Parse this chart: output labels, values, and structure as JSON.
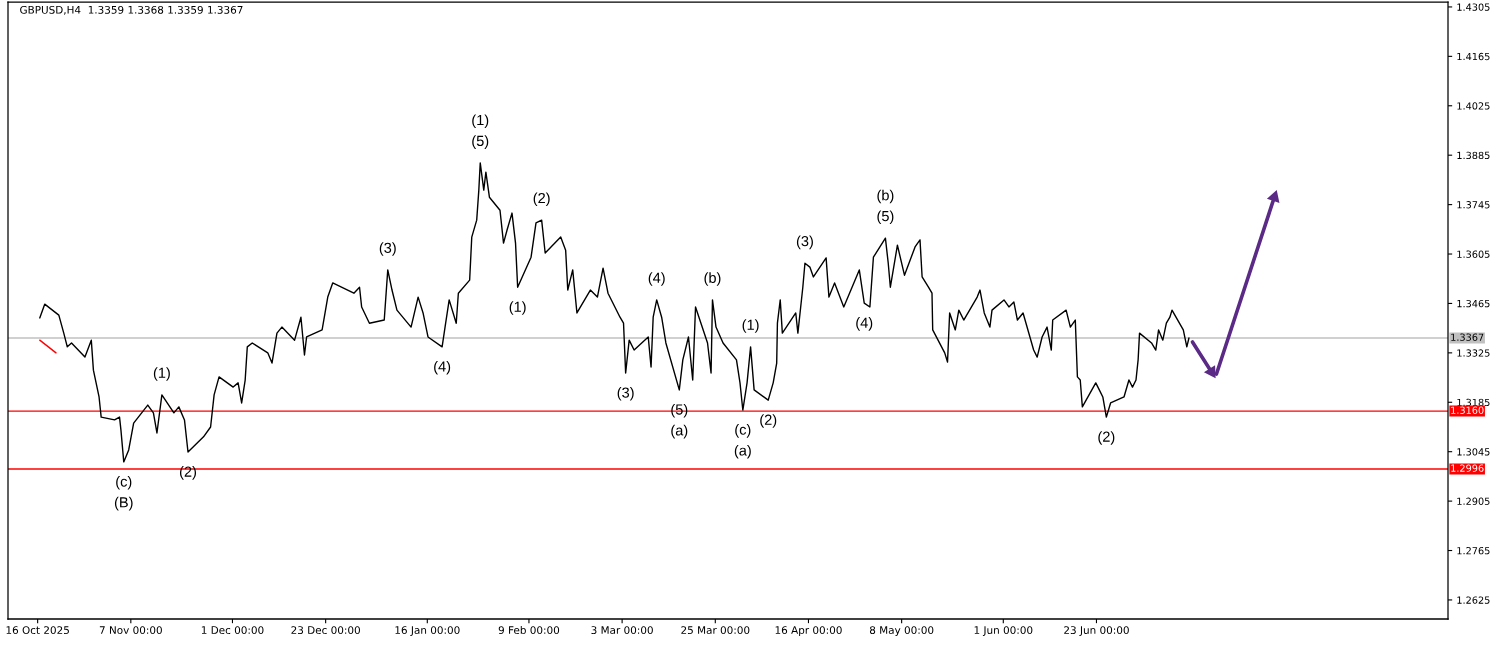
{
  "chart_data": {
    "type": "line",
    "title": "GBPUSD,H4  1.3359 1.3368 1.3359 1.3367",
    "xlim": [
      "2025-10-09",
      "2026-09-14"
    ],
    "ylim": [
      1.2571,
      1.4319
    ],
    "xticks": [
      {
        "value": "2025-10-16",
        "label": "16 Oct 2025"
      },
      {
        "value": "2025-11-07",
        "label": "7 Nov 00:00"
      },
      {
        "value": "2025-12-01",
        "label": "1 Dec 00:00"
      },
      {
        "value": "2025-12-23",
        "label": "23 Dec 00:00"
      },
      {
        "value": "2026-01-16",
        "label": "16 Jan 00:00"
      },
      {
        "value": "2026-02-09",
        "label": "9 Feb 00:00"
      },
      {
        "value": "2026-03-03",
        "label": "3 Mar 00:00"
      },
      {
        "value": "2026-03-25",
        "label": "25 Mar 00:00"
      },
      {
        "value": "2026-04-16",
        "label": "16 Apr 00:00"
      },
      {
        "value": "2026-05-08",
        "label": "8 May 00:00"
      },
      {
        "value": "2026-06-01",
        "label": "1 Jun 00:00"
      },
      {
        "value": "2026-06-23",
        "label": "23 Jun 00:00"
      }
    ],
    "yticks": [
      1.4305,
      1.4165,
      1.4025,
      1.3885,
      1.3745,
      1.3605,
      1.3465,
      1.3325,
      1.3185,
      1.3045,
      1.2905,
      1.2765,
      1.2625
    ],
    "series": [
      {
        "color": "#000000",
        "x": [
          "2025-10-16T12:00",
          "2025-10-17T16:00",
          "2025-10-21T00:00",
          "2025-10-22T04:00",
          "2025-10-23T00:00",
          "2025-10-24T00:00",
          "2025-10-27T04:00",
          "2025-10-28T16:00",
          "2025-10-29T04:00",
          "2025-10-30T12:00",
          "2025-10-31T00:00",
          "2025-11-03T04:00",
          "2025-11-04T08:00",
          "2025-11-04T16:00",
          "2025-11-05T08:00",
          "2025-11-06T12:00",
          "2025-11-07T16:00",
          "2025-11-11T00:00",
          "2025-11-12T08:00",
          "2025-11-13T04:00",
          "2025-11-14T08:00",
          "2025-11-17T04:00",
          "2025-11-18T08:00",
          "2025-11-19T16:00",
          "2025-11-20T12:00",
          "2025-11-24T04:00",
          "2025-11-25T20:00",
          "2025-11-26T16:00",
          "2025-11-27T20:00",
          "2025-12-01T04:00",
          "2025-12-02T08:00",
          "2025-12-03T04:00",
          "2025-12-04T00:00",
          "2025-12-04T12:00",
          "2025-12-05T16:00",
          "2025-12-09T08:00",
          "2025-12-10T08:00",
          "2025-12-11T12:00",
          "2025-12-12T16:00",
          "2025-12-15T16:00",
          "2025-12-17T04:00",
          "2025-12-18T00:00",
          "2025-12-18T12:00",
          "2025-12-22T04:00",
          "2025-12-23T12:00",
          "2025-12-24T16:00",
          "2025-12-29T16:00",
          "2025-12-31T00:00",
          "2025-12-31T12:00",
          "2026-01-02T08:00",
          "2026-01-05T20:00",
          "2026-01-06T16:00",
          "2026-01-07T16:00",
          "2026-01-08T20:00",
          "2026-01-12T04:00",
          "2026-01-13T20:00",
          "2026-01-15T00:00",
          "2026-01-16T04:00",
          "2026-01-19T12:00",
          "2026-01-20T08:00",
          "2026-01-21T04:00",
          "2026-01-22T20:00",
          "2026-01-23T08:00",
          "2026-01-26T00:00",
          "2026-01-26T12:00",
          "2026-01-27T16:00",
          "2026-01-28T04:00",
          "2026-01-28T12:00",
          "2026-01-29T08:00",
          "2026-01-29T20:00",
          "2026-01-30T16:00",
          "2026-02-02T04:00",
          "2026-02-03T00:00",
          "2026-02-03T20:00",
          "2026-02-05T00:00",
          "2026-02-05T20:00",
          "2026-02-06T08:00",
          "2026-02-09T12:00",
          "2026-02-10T16:00",
          "2026-02-12T00:00",
          "2026-02-12T20:00",
          "2026-02-16T12:00",
          "2026-02-17T16:00",
          "2026-02-18T04:00",
          "2026-02-19T08:00",
          "2026-02-20T08:00",
          "2026-02-23T12:00",
          "2026-02-25T04:00",
          "2026-02-26T12:00",
          "2026-02-27T16:00",
          "2026-03-02T12:00",
          "2026-03-03T08:00",
          "2026-03-03T20:00",
          "2026-03-04T16:00",
          "2026-03-05T20:00",
          "2026-03-09T04:00",
          "2026-03-09T20:00",
          "2026-03-10T08:00",
          "2026-03-11T04:00",
          "2026-03-12T08:00",
          "2026-03-13T08:00",
          "2026-03-16T12:00",
          "2026-03-17T08:00",
          "2026-03-18T16:00",
          "2026-03-19T16:00",
          "2026-03-20T08:00",
          "2026-03-23T04:00",
          "2026-03-24T00:00",
          "2026-03-24T08:00",
          "2026-03-25T04:00",
          "2026-03-26T20:00",
          "2026-03-30T00:00",
          "2026-03-30T20:00",
          "2026-03-31T12:00",
          "2026-04-01T12:00",
          "2026-04-02T08:00",
          "2026-04-03T04:00",
          "2026-04-06T12:00",
          "2026-04-07T16:00",
          "2026-04-08T12:00",
          "2026-04-08T16:00",
          "2026-04-09T08:00",
          "2026-04-09T20:00",
          "2026-04-13T00:00",
          "2026-04-13T12:00",
          "2026-04-14T16:00",
          "2026-04-15T04:00",
          "2026-04-16T08:00",
          "2026-04-17T04:00",
          "2026-04-20T04:00",
          "2026-04-20T20:00",
          "2026-04-22T04:00",
          "2026-04-24T08:00",
          "2026-04-28T00:00",
          "2026-04-29T04:00",
          "2026-04-30T12:00",
          "2026-05-01T08:00",
          "2026-05-04T04:00",
          "2026-05-04T20:00",
          "2026-05-05T08:00",
          "2026-05-07T00:00",
          "2026-05-08T16:00",
          "2026-05-11T04:00",
          "2026-05-12T08:00",
          "2026-05-12T20:00",
          "2026-05-14T08:00",
          "2026-05-15T04:00",
          "2026-05-15T08:00",
          "2026-05-18T04:00",
          "2026-05-18T20:00",
          "2026-05-19T08:00",
          "2026-05-20T16:00",
          "2026-05-21T12:00",
          "2026-05-22T16:00",
          "2026-05-25T20:00",
          "2026-05-26T12:00",
          "2026-05-27T12:00",
          "2026-05-28T20:00",
          "2026-05-29T08:00",
          "2026-06-01T04:00",
          "2026-06-02T08:00",
          "2026-06-03T12:00",
          "2026-06-04T08:00",
          "2026-06-05T16:00",
          "2026-06-08T04:00",
          "2026-06-09T00:00",
          "2026-06-10T04:00",
          "2026-06-11T08:00",
          "2026-06-12T08:00",
          "2026-06-12T16:00",
          "2026-06-15T20:00",
          "2026-06-16T20:00",
          "2026-06-18T00:00",
          "2026-06-18T12:00",
          "2026-06-19T04:00",
          "2026-06-19T16:00",
          "2026-06-22T20:00",
          "2026-06-23T16:00",
          "2026-06-24T12:00",
          "2026-06-25T08:00",
          "2026-06-26T08:00",
          "2026-06-29T12:00",
          "2026-06-30T16:00",
          "2026-07-01T12:00",
          "2026-07-02T08:00",
          "2026-07-02T20:00",
          "2026-07-03T04:00",
          "2026-07-06T00:00",
          "2026-07-07T00:00",
          "2026-07-07T16:00",
          "2026-07-08T16:00",
          "2026-07-09T12:00",
          "2026-07-10T08:00",
          "2026-07-10T20:00",
          "2026-07-13T12:00",
          "2026-07-14T08:00",
          "2026-07-14T20:00"
        ],
        "values": [
          1.3424,
          1.3463,
          1.3432,
          1.3381,
          1.3342,
          1.3353,
          1.3313,
          1.3361,
          1.3276,
          1.32,
          1.3143,
          1.3135,
          1.3143,
          1.3106,
          1.3016,
          1.305,
          1.3126,
          1.3177,
          1.3155,
          1.3098,
          1.3206,
          1.3155,
          1.3172,
          1.3135,
          1.3044,
          1.3087,
          1.3115,
          1.3206,
          1.3257,
          1.3228,
          1.324,
          1.3183,
          1.3248,
          1.3342,
          1.3353,
          1.3325,
          1.3296,
          1.3381,
          1.3398,
          1.3361,
          1.3426,
          1.3319,
          1.337,
          1.339,
          1.3483,
          1.3523,
          1.3494,
          1.3511,
          1.3455,
          1.3409,
          1.3418,
          1.356,
          1.3503,
          1.3446,
          1.3398,
          1.3483,
          1.3438,
          1.337,
          1.3342,
          1.3409,
          1.3475,
          1.3409,
          1.3494,
          1.3531,
          1.3653,
          1.3701,
          1.3786,
          1.3863,
          1.3786,
          1.3837,
          1.3766,
          1.3729,
          1.3636,
          1.3673,
          1.3721,
          1.3636,
          1.3511,
          1.3596,
          1.3693,
          1.3701,
          1.3608,
          1.3653,
          1.3616,
          1.3503,
          1.356,
          1.3438,
          1.3503,
          1.3483,
          1.3565,
          1.3494,
          1.3426,
          1.3409,
          1.3268,
          1.3361,
          1.3333,
          1.337,
          1.3285,
          1.3426,
          1.3475,
          1.3426,
          1.3353,
          1.322,
          1.3305,
          1.337,
          1.3248,
          1.3455,
          1.3353,
          1.3268,
          1.3475,
          1.3398,
          1.3353,
          1.3305,
          1.324,
          1.3163,
          1.324,
          1.3342,
          1.322,
          1.3191,
          1.324,
          1.3296,
          1.3409,
          1.3475,
          1.3381,
          1.3438,
          1.3381,
          1.3511,
          1.3579,
          1.3568,
          1.354,
          1.3594,
          1.3483,
          1.3523,
          1.3455,
          1.356,
          1.3466,
          1.3455,
          1.3596,
          1.365,
          1.3579,
          1.3511,
          1.363,
          1.3545,
          1.3625,
          1.3645,
          1.354,
          1.3511,
          1.3494,
          1.339,
          1.3325,
          1.3299,
          1.3438,
          1.339,
          1.3446,
          1.3418,
          1.3483,
          1.3503,
          1.3438,
          1.3398,
          1.3446,
          1.3475,
          1.3455,
          1.3469,
          1.3418,
          1.3438,
          1.3333,
          1.3313,
          1.337,
          1.3398,
          1.3333,
          1.3418,
          1.3446,
          1.3398,
          1.3418,
          1.3257,
          1.3248,
          1.3172,
          1.324,
          1.322,
          1.32,
          1.3143,
          1.3183,
          1.32,
          1.3248,
          1.3228,
          1.3248,
          1.3305,
          1.3381,
          1.3353,
          1.3333,
          1.339,
          1.3361,
          1.3409,
          1.3426,
          1.3446,
          1.339,
          1.3342,
          1.3367
        ]
      },
      {
        "color": "#ff0000",
        "x": [
          "2025-10-16T12:00",
          "2025-10-20T08:00"
        ],
        "values": [
          1.3361,
          1.3325
        ]
      },
      {
        "color": "#5b2a86",
        "marker": "triangle",
        "x": [
          "2026-07-15T16:00",
          "2026-07-20T04:00"
        ],
        "values": [
          1.3356,
          1.3271
        ]
      },
      {
        "color": "#5b2a86",
        "marker": "triangle",
        "x": [
          "2026-07-21T08:00",
          "2026-08-04T00:00"
        ],
        "values": [
          1.3265,
          1.3766
        ]
      }
    ],
    "ref_lines": [
      {
        "axis": "y",
        "value": 1.3367,
        "label": "1.3367",
        "color": "#c0c0c0"
      },
      {
        "axis": "y",
        "value": 1.316,
        "label": "1.3160",
        "color": "#ff0000"
      },
      {
        "axis": "y",
        "value": 1.2996,
        "label": "1.2996",
        "color": "#ff0000"
      }
    ],
    "annotations": [
      {
        "text": "(c)",
        "x": "2025-11-05T08:00",
        "y": 1.3016
      },
      {
        "text": "(B)",
        "x": "2025-11-05T08:00",
        "y": 1.3016
      },
      {
        "text": "(1)",
        "x": "2025-11-14T08:00",
        "y": 1.3206
      },
      {
        "text": "(2)",
        "x": "2025-11-20T12:00",
        "y": 1.3044
      },
      {
        "text": "(3)",
        "x": "2026-01-06T16:00",
        "y": 1.356
      },
      {
        "text": "(4)",
        "x": "2026-01-19T12:00",
        "y": 1.3342
      },
      {
        "text": "(5)",
        "x": "2026-01-28T12:00",
        "y": 1.3863
      },
      {
        "text": "(1)",
        "x": "2026-01-28T12:00",
        "y": 1.3863
      },
      {
        "text": "(1)",
        "x": "2026-02-06T08:00",
        "y": 1.3511
      },
      {
        "text": "(2)",
        "x": "2026-02-12T00:00",
        "y": 1.3701
      },
      {
        "text": "(3)",
        "x": "2026-03-03T20:00",
        "y": 1.3268
      },
      {
        "text": "(4)",
        "x": "2026-03-11T04:00",
        "y": 1.3475
      },
      {
        "text": "(5)",
        "x": "2026-03-16T12:00",
        "y": 1.322
      },
      {
        "text": "(a)",
        "x": "2026-03-16T12:00",
        "y": 1.322
      },
      {
        "text": "(b)",
        "x": "2026-03-24T08:00",
        "y": 1.3475
      },
      {
        "text": "(c)",
        "x": "2026-03-31T12:00",
        "y": 1.3163
      },
      {
        "text": "(a)",
        "x": "2026-03-31T12:00",
        "y": 1.3163
      },
      {
        "text": "(1)",
        "x": "2026-04-02T08:00",
        "y": 1.3342
      },
      {
        "text": "(2)",
        "x": "2026-04-06T12:00",
        "y": 1.3191
      },
      {
        "text": "(3)",
        "x": "2026-04-15T04:00",
        "y": 1.3579
      },
      {
        "text": "(4)",
        "x": "2026-04-29T04:00",
        "y": 1.3466
      },
      {
        "text": "(5)",
        "x": "2026-05-04T04:00",
        "y": 1.365
      },
      {
        "text": "(b)",
        "x": "2026-05-04T04:00",
        "y": 1.365
      },
      {
        "text": "(2)",
        "x": "2026-06-25T08:00",
        "y": 1.3143
      }
    ]
  }
}
